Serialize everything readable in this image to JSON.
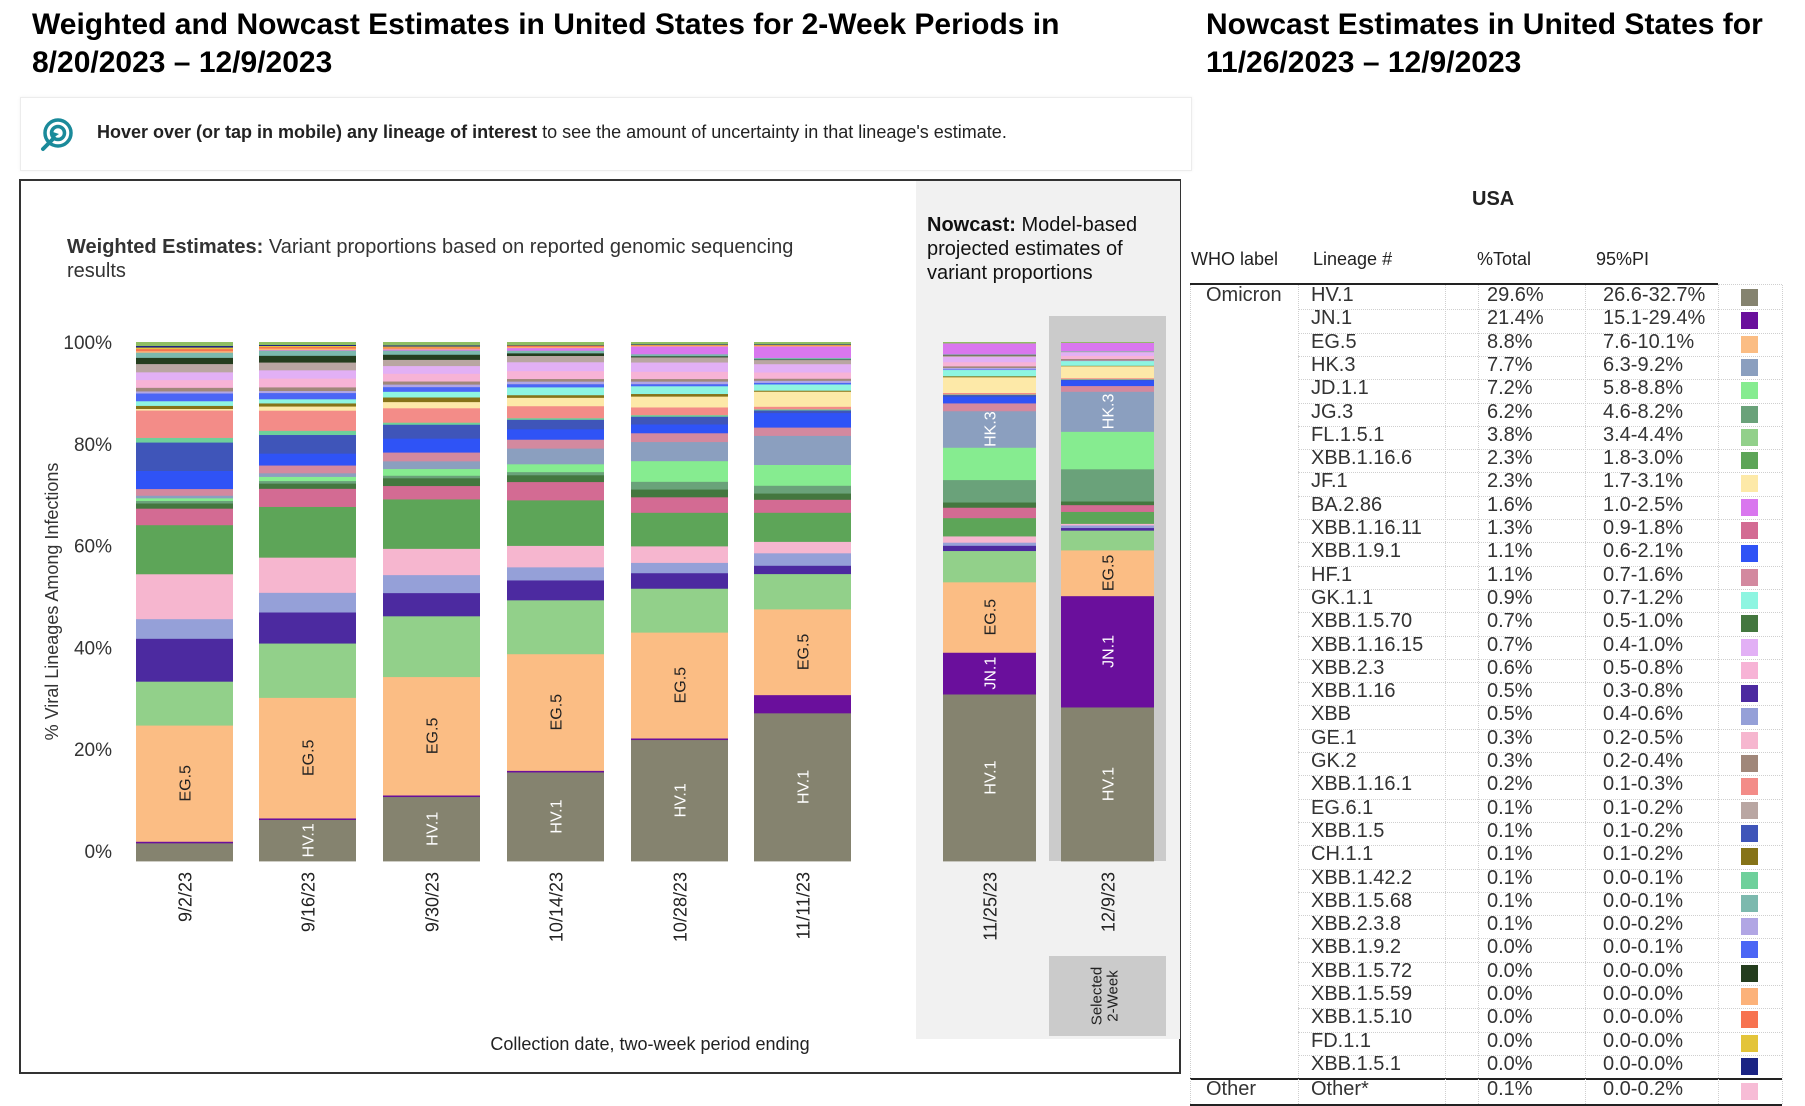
{
  "header": {
    "main_title": "Weighted and Nowcast Estimates in United States for 2-Week Periods in 8/20/2023 – 12/9/2023",
    "right_title": "Nowcast Estimates in United States for 11/26/2023 – 12/9/2023"
  },
  "banner": {
    "icon": "target-pointer-icon",
    "bold_text": "Hover over (or tap in mobile) any lineage of interest",
    "rest_text": " to see the amount of uncertainty in that lineage's estimate."
  },
  "weighted_panel": {
    "heading_bold": "Weighted Estimates:",
    "heading_rest": " Variant proportions based on reported genomic sequencing results"
  },
  "nowcast_panel": {
    "heading_bold": "Nowcast:",
    "heading_rest": " Model-based projected estimates of variant proportions",
    "selected_label_line1": "Selected",
    "selected_label_line2": "2-Week"
  },
  "table": {
    "region": "USA",
    "headers": [
      "WHO label",
      "Lineage #",
      "%Total",
      "95%PI"
    ],
    "rows": [
      {
        "who": "Omicron",
        "lineage": "HV.1",
        "pct": "29.6%",
        "pi": "26.6-32.7%",
        "color": "#85836f"
      },
      {
        "who": "",
        "lineage": "JN.1",
        "pct": "21.4%",
        "pi": "15.1-29.4%",
        "color": "#6a0f9c"
      },
      {
        "who": "",
        "lineage": "EG.5",
        "pct": "8.8%",
        "pi": "7.6-10.1%",
        "color": "#fbbd84"
      },
      {
        "who": "",
        "lineage": "HK.3",
        "pct": "7.7%",
        "pi": "6.3-9.2%",
        "color": "#8b9fbf"
      },
      {
        "who": "",
        "lineage": "JD.1.1",
        "pct": "7.2%",
        "pi": "5.8-8.8%",
        "color": "#86ec90"
      },
      {
        "who": "",
        "lineage": "JG.3",
        "pct": "6.2%",
        "pi": "4.6-8.2%",
        "color": "#6aa27a"
      },
      {
        "who": "",
        "lineage": "FL.1.5.1",
        "pct": "3.8%",
        "pi": "3.4-4.4%",
        "color": "#92d08a"
      },
      {
        "who": "",
        "lineage": "XBB.1.16.6",
        "pct": "2.3%",
        "pi": "1.8-3.0%",
        "color": "#5da558"
      },
      {
        "who": "",
        "lineage": "JF.1",
        "pct": "2.3%",
        "pi": "1.7-3.1%",
        "color": "#fde9a8"
      },
      {
        "who": "",
        "lineage": "BA.2.86",
        "pct": "1.6%",
        "pi": "1.0-2.5%",
        "color": "#d977ee"
      },
      {
        "who": "",
        "lineage": "XBB.1.16.11",
        "pct": "1.3%",
        "pi": "0.9-1.8%",
        "color": "#d36b93"
      },
      {
        "who": "",
        "lineage": "XBB.1.9.1",
        "pct": "1.1%",
        "pi": "0.6-2.1%",
        "color": "#2f53f6"
      },
      {
        "who": "",
        "lineage": "HF.1",
        "pct": "1.1%",
        "pi": "0.7-1.6%",
        "color": "#d3899f"
      },
      {
        "who": "",
        "lineage": "GK.1.1",
        "pct": "0.9%",
        "pi": "0.7-1.2%",
        "color": "#8ef5e1"
      },
      {
        "who": "",
        "lineage": "XBB.1.5.70",
        "pct": "0.7%",
        "pi": "0.5-1.0%",
        "color": "#44773f"
      },
      {
        "who": "",
        "lineage": "XBB.1.16.15",
        "pct": "0.7%",
        "pi": "0.4-1.0%",
        "color": "#e2b0f5"
      },
      {
        "who": "",
        "lineage": "XBB.2.3",
        "pct": "0.6%",
        "pi": "0.5-0.8%",
        "color": "#f7b3d6"
      },
      {
        "who": "",
        "lineage": "XBB.1.16",
        "pct": "0.5%",
        "pi": "0.3-0.8%",
        "color": "#4c2aa0"
      },
      {
        "who": "",
        "lineage": "XBB",
        "pct": "0.5%",
        "pi": "0.4-0.6%",
        "color": "#95a0d8"
      },
      {
        "who": "",
        "lineage": "GE.1",
        "pct": "0.3%",
        "pi": "0.2-0.5%",
        "color": "#f6b6cf"
      },
      {
        "who": "",
        "lineage": "GK.2",
        "pct": "0.3%",
        "pi": "0.2-0.4%",
        "color": "#a0877a"
      },
      {
        "who": "",
        "lineage": "XBB.1.16.1",
        "pct": "0.2%",
        "pi": "0.1-0.3%",
        "color": "#f38c88"
      },
      {
        "who": "",
        "lineage": "EG.6.1",
        "pct": "0.1%",
        "pi": "0.1-0.2%",
        "color": "#b9a6a2"
      },
      {
        "who": "",
        "lineage": "XBB.1.5",
        "pct": "0.1%",
        "pi": "0.1-0.2%",
        "color": "#3f55b9"
      },
      {
        "who": "",
        "lineage": "CH.1.1",
        "pct": "0.1%",
        "pi": "0.1-0.2%",
        "color": "#867318"
      },
      {
        "who": "",
        "lineage": "XBB.1.42.2",
        "pct": "0.1%",
        "pi": "0.0-0.1%",
        "color": "#6ed09b"
      },
      {
        "who": "",
        "lineage": "XBB.1.5.68",
        "pct": "0.1%",
        "pi": "0.0-0.1%",
        "color": "#7cb9ae"
      },
      {
        "who": "",
        "lineage": "XBB.2.3.8",
        "pct": "0.1%",
        "pi": "0.0-0.2%",
        "color": "#b1a6e4"
      },
      {
        "who": "",
        "lineage": "XBB.1.9.2",
        "pct": "0.0%",
        "pi": "0.0-0.1%",
        "color": "#4b66f5"
      },
      {
        "who": "",
        "lineage": "XBB.1.5.72",
        "pct": "0.0%",
        "pi": "0.0-0.0%",
        "color": "#243d1e"
      },
      {
        "who": "",
        "lineage": "XBB.1.5.59",
        "pct": "0.0%",
        "pi": "0.0-0.0%",
        "color": "#fcb27a"
      },
      {
        "who": "",
        "lineage": "XBB.1.5.10",
        "pct": "0.0%",
        "pi": "0.0-0.0%",
        "color": "#f77350"
      },
      {
        "who": "",
        "lineage": "FD.1.1",
        "pct": "0.0%",
        "pi": "0.0-0.0%",
        "color": "#e3c43a"
      },
      {
        "who": "",
        "lineage": "XBB.1.5.1",
        "pct": "0.0%",
        "pi": "0.0-0.0%",
        "color": "#1b2484"
      }
    ],
    "other_row": {
      "who": "Other",
      "lineage": "Other*",
      "pct": "0.1%",
      "pi": "0.0-0.2%",
      "color": "#f7bcd6"
    }
  },
  "chart_data": {
    "type": "bar",
    "stacked": true,
    "title": "Weighted and Nowcast Estimates in United States for 2-Week Periods in 8/20/2023 – 12/9/2023",
    "xlabel": "Collection date, two-week period ending",
    "ylabel": "% Viral Lineages Among Infections",
    "ylim": [
      0,
      100
    ],
    "yticks": [
      "0%",
      "20%",
      "40%",
      "60%",
      "80%",
      "100%"
    ],
    "categories": [
      "9/2/23",
      "9/16/23",
      "9/30/23",
      "10/14/23",
      "10/28/23",
      "11/11/23",
      "11/25/23",
      "12/9/23"
    ],
    "category_kind": [
      "weighted",
      "weighted",
      "weighted",
      "weighted",
      "weighted",
      "weighted",
      "nowcast",
      "nowcast"
    ],
    "selected_category": "12/9/23",
    "segment_labels": [
      "HV.1",
      "JN.1",
      "EG.5",
      "HK.3"
    ],
    "series": [
      {
        "name": "HV.1",
        "color": "#85836f",
        "values": [
          3.5,
          8,
          12.5,
          17,
          23.5,
          28.5,
          32,
          29.6
        ]
      },
      {
        "name": "JN.1",
        "color": "#6a0f9c",
        "values": [
          0.3,
          0.3,
          0.3,
          0.3,
          0.3,
          3.5,
          8,
          21.4
        ]
      },
      {
        "name": "EG.5",
        "color": "#fbbd84",
        "values": [
          22.5,
          23.3,
          23,
          22.3,
          20.5,
          16.5,
          13.5,
          8.8
        ]
      },
      {
        "name": "FL.1.5.1",
        "color": "#92d08a",
        "values": [
          8.5,
          10.5,
          11.8,
          10.3,
          8.5,
          6.8,
          6,
          3.8
        ]
      },
      {
        "name": "XBB.1.16",
        "color": "#4c2aa0",
        "values": [
          8.3,
          6,
          4.5,
          3.8,
          3,
          1.6,
          1,
          0.5
        ]
      },
      {
        "name": "XBB",
        "color": "#95a0d8",
        "values": [
          3.8,
          3.8,
          3.5,
          2.5,
          2,
          2.4,
          0.6,
          0.5
        ]
      },
      {
        "name": "GE.1",
        "color": "#f6b6cf",
        "values": [
          8.7,
          6.8,
          5.1,
          4.1,
          3.2,
          2.2,
          1.2,
          0.3
        ]
      },
      {
        "name": "XBB.1.16.6",
        "color": "#5da558",
        "values": [
          9.5,
          9.8,
          9.6,
          8.7,
          6.5,
          5.6,
          3.5,
          2.3
        ]
      },
      {
        "name": "XBB.1.16.11",
        "color": "#d36b93",
        "values": [
          3.2,
          3.5,
          2.6,
          3.5,
          3,
          2.5,
          2,
          1.3
        ]
      },
      {
        "name": "XBB.1.5.70",
        "color": "#44773f",
        "values": [
          1,
          1,
          1.5,
          1.3,
          1.5,
          1.2,
          1,
          0.7
        ]
      },
      {
        "name": "JG.3",
        "color": "#6aa27a",
        "values": [
          0.5,
          0.5,
          0.5,
          0.6,
          1.5,
          1.5,
          4.3,
          6.2
        ]
      },
      {
        "name": "JD.1.1",
        "color": "#86ec90",
        "values": [
          0.5,
          0.8,
          1.3,
          1.5,
          4,
          4,
          6.2,
          7.2
        ]
      },
      {
        "name": "HK.3",
        "color": "#8b9fbf",
        "values": [
          0.5,
          0.7,
          1.5,
          3,
          3.7,
          5.6,
          7,
          7.7
        ]
      },
      {
        "name": "HF.1",
        "color": "#d3899f",
        "values": [
          1.3,
          1.5,
          1.7,
          1.7,
          1.7,
          1.6,
          1.5,
          1.1
        ]
      },
      {
        "name": "XBB.1.9.1",
        "color": "#2f53f6",
        "values": [
          3.5,
          2.3,
          2.7,
          2,
          1.7,
          2.8,
          1.3,
          1.1
        ]
      },
      {
        "name": "XBB.1.5",
        "color": "#3f55b9",
        "values": [
          5.5,
          3.6,
          2.7,
          1.8,
          1.5,
          0.5,
          0.3,
          0.1
        ]
      },
      {
        "name": "XBB.1.42.2",
        "color": "#6ed09b",
        "values": [
          0.9,
          0.8,
          0.4,
          0.3,
          0.3,
          0.2,
          0.1,
          0.1
        ]
      },
      {
        "name": "XBB.1.16.1",
        "color": "#f38c88",
        "values": [
          5.3,
          3.9,
          2.8,
          2.3,
          1.5,
          0.5,
          0.3,
          0.2
        ]
      },
      {
        "name": "JF.1",
        "color": "#fde9a8",
        "values": [
          0.3,
          0.8,
          1.2,
          1.6,
          2.1,
          2.9,
          3,
          2.3
        ]
      },
      {
        "name": "CH.1.1",
        "color": "#867318",
        "values": [
          0.6,
          0.6,
          0.9,
          0.5,
          0.5,
          0.2,
          0.2,
          0.1
        ]
      },
      {
        "name": "GK.1.1",
        "color": "#8ef5e1",
        "values": [
          0.9,
          0.8,
          1.1,
          1.5,
          1.5,
          1.2,
          1.2,
          0.9
        ]
      },
      {
        "name": "XBB.1.9.2",
        "color": "#4b66f5",
        "values": [
          1.5,
          1.2,
          0.9,
          0.6,
          0.4,
          0.3,
          0.1,
          0.0
        ]
      },
      {
        "name": "XBB.2.3.8",
        "color": "#b1a6e4",
        "values": [
          0.4,
          0.4,
          0.5,
          0.5,
          0.5,
          0.4,
          0.3,
          0.1
        ]
      },
      {
        "name": "GK.2",
        "color": "#a0877a",
        "values": [
          0.7,
          0.7,
          0.6,
          0.5,
          0.5,
          0.4,
          0.3,
          0.3
        ]
      },
      {
        "name": "XBB.2.3",
        "color": "#f7b3d6",
        "values": [
          1.5,
          1.7,
          1.5,
          1.5,
          1.4,
          1.2,
          0.8,
          0.6
        ]
      },
      {
        "name": "XBB.1.16.15",
        "color": "#e2b0f5",
        "values": [
          1.5,
          1.6,
          1.5,
          1.7,
          1.8,
          1.6,
          1,
          0.7
        ]
      },
      {
        "name": "EG.6.1",
        "color": "#b9a6a2",
        "values": [
          1.6,
          1.5,
          1.2,
          1.2,
          1,
          0.8,
          0.3,
          0.1
        ]
      },
      {
        "name": "XBB.1.5.72",
        "color": "#243d1e",
        "values": [
          1.2,
          1.3,
          1,
          0.5,
          0.2,
          0.1,
          0.1,
          0.0
        ]
      },
      {
        "name": "XBB.1.5.68",
        "color": "#7cb9ae",
        "values": [
          1,
          1,
          0.8,
          0.5,
          0.4,
          0.3,
          0.1,
          0.1
        ]
      },
      {
        "name": "BA.2.86",
        "color": "#d977ee",
        "values": [
          0,
          0.1,
          0.2,
          0.5,
          1.5,
          2.2,
          2.1,
          1.6
        ]
      },
      {
        "name": "XBB.1.5.59",
        "color": "#fcb27a",
        "values": [
          0.3,
          0.3,
          0.2,
          0.2,
          0.1,
          0.1,
          0.0,
          0.0
        ]
      },
      {
        "name": "XBB.1.5.10",
        "color": "#f77350",
        "values": [
          0.4,
          0.3,
          0.2,
          0.2,
          0.1,
          0.1,
          0.0,
          0.0
        ]
      },
      {
        "name": "FD.1.1",
        "color": "#e3c43a",
        "values": [
          0.3,
          0.2,
          0.2,
          0.1,
          0.1,
          0.1,
          0.0,
          0.0
        ]
      },
      {
        "name": "XBB.1.5.1",
        "color": "#1b2484",
        "values": [
          0.3,
          0.2,
          0.2,
          0.1,
          0.1,
          0.1,
          0.0,
          0.0
        ]
      },
      {
        "name": "Other*",
        "color": "#8fbe62",
        "values": [
          0.7,
          0.5,
          0.6,
          0.5,
          0.4,
          0.4,
          0.2,
          0.1
        ]
      }
    ]
  }
}
